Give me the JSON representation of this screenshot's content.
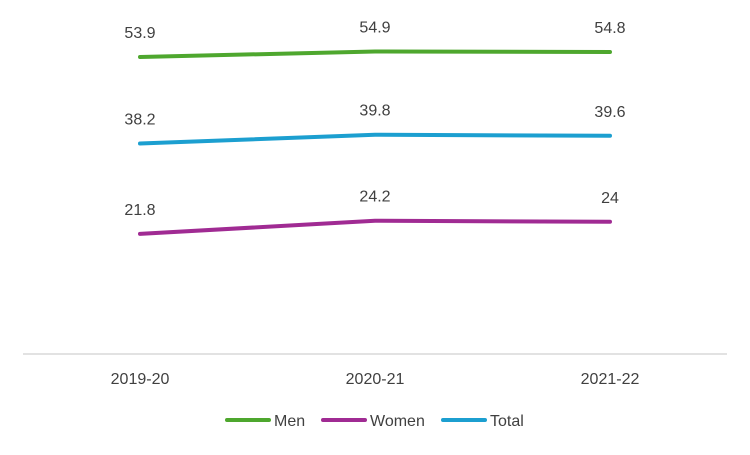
{
  "chart_data": {
    "type": "line",
    "categories": [
      "2019-20",
      "2020-21",
      "2021-22"
    ],
    "series": [
      {
        "name": "Men",
        "values": [
          53.9,
          54.9,
          54.8
        ],
        "color": "#4EA72E"
      },
      {
        "name": "Women",
        "values": [
          21.8,
          24.2,
          24
        ],
        "color": "#A02B93"
      },
      {
        "name": "Total",
        "values": [
          38.2,
          39.8,
          39.6
        ],
        "color": "#1C9FD0"
      }
    ],
    "data_labels": [
      [
        "53.9",
        "54.9",
        "54.8"
      ],
      [
        "21.8",
        "24.2",
        "24"
      ],
      [
        "38.2",
        "39.8",
        "39.6"
      ]
    ],
    "ylim": [
      0,
      60
    ],
    "grid": false,
    "legend": "bottom"
  }
}
